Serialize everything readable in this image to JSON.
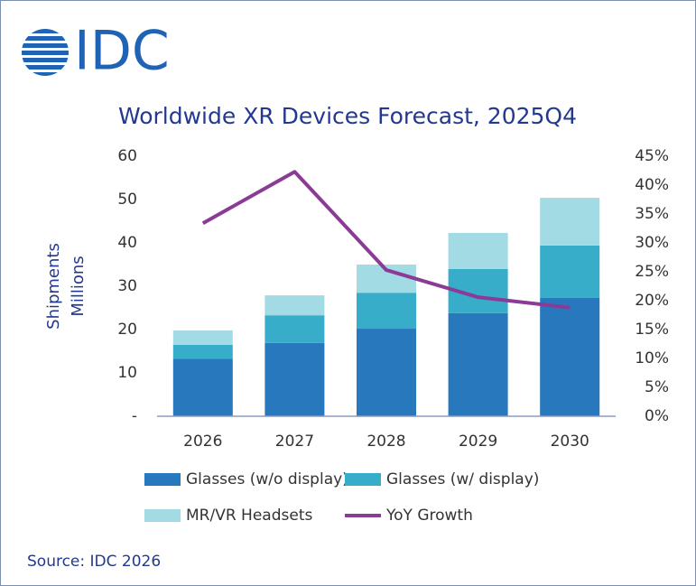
{
  "header": {
    "logo": "IDC"
  },
  "chart_data": {
    "type": "bar",
    "stacked": true,
    "title": "Worldwide XR Devices Forecast, 2025Q4",
    "ylabel": [
      "Shipments",
      "Millions"
    ],
    "categories": [
      "2026",
      "2027",
      "2028",
      "2029",
      "2030"
    ],
    "series": [
      {
        "name": "Glasses (w/o display)",
        "color": "#2878bd",
        "values": [
          13.3,
          16.9,
          20.2,
          23.8,
          27.3
        ]
      },
      {
        "name": "Glasses (w/ display)",
        "color": "#37adc9",
        "values": [
          3.2,
          6.4,
          8.3,
          10.2,
          12.1
        ]
      },
      {
        "name": "MR/VR Headsets",
        "color": "#a3dbe4",
        "values": [
          3.3,
          4.6,
          6.5,
          8.3,
          11.0
        ]
      },
      {
        "name": "YoY Growth",
        "color": "#8b3a96",
        "type": "line",
        "axis": "y2",
        "values": [
          33.4,
          42.3,
          25.3,
          20.6,
          18.8
        ]
      }
    ],
    "ylim": [
      0,
      60
    ],
    "yticks": [
      {
        "value": 0,
        "label": "-"
      },
      10,
      20,
      30,
      40,
      50,
      60
    ],
    "y2lim": [
      0,
      45
    ],
    "y2ticks": [
      {
        "value": 0,
        "label": "0%"
      },
      {
        "value": 5,
        "label": "5%"
      },
      {
        "value": 10,
        "label": "10%"
      },
      {
        "value": 15,
        "label": "15%"
      },
      {
        "value": 20,
        "label": "20%"
      },
      {
        "value": 25,
        "label": "25%"
      },
      {
        "value": 30,
        "label": "30%"
      },
      {
        "value": 35,
        "label": "35%"
      },
      {
        "value": 40,
        "label": "40%"
      },
      {
        "value": 45,
        "label": "45%"
      }
    ],
    "grid": false,
    "legend": "bottom",
    "source": "Source: IDC 2026"
  }
}
